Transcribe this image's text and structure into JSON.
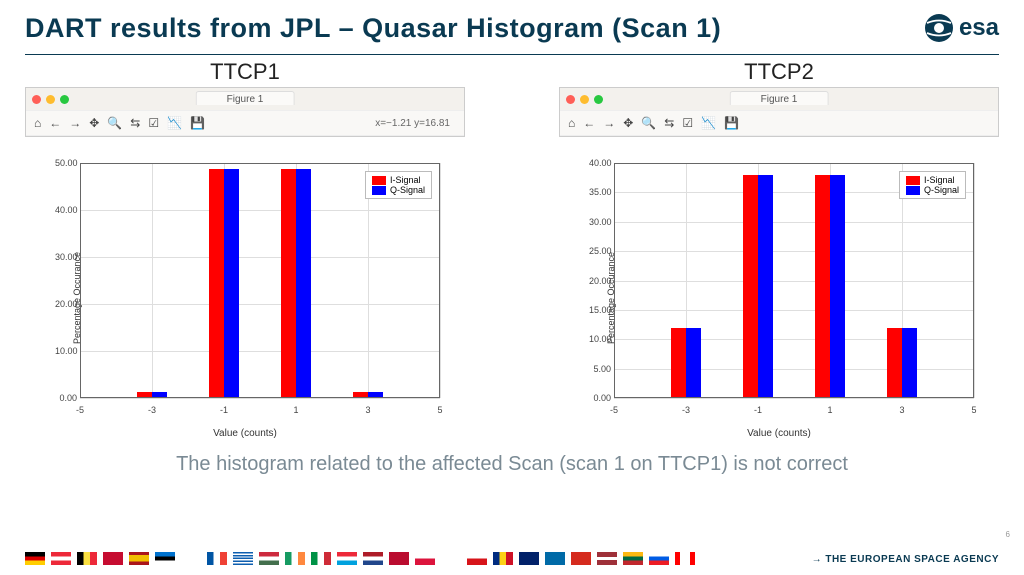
{
  "title": "DART results from JPL – Quasar Histogram (Scan 1)",
  "logo_text": "esa",
  "caption": "The histogram related to the affected Scan (scan 1 on TTCP1) is not correct",
  "page_number": "6",
  "footer_text": "→ THE EUROPEAN SPACE AGENCY",
  "toolbar": {
    "figure_label": "Figure 1",
    "icons": [
      "⌂",
      "←",
      "→",
      "✥",
      "🔍",
      "⇆",
      "☑",
      "📉",
      "💾"
    ],
    "coord": "x=−1.21 y=16.81"
  },
  "legend": {
    "items": [
      {
        "label": "I-Signal",
        "color": "#ff0000"
      },
      {
        "label": "Q-Signal",
        "color": "#0000ff"
      }
    ]
  },
  "axes_common": {
    "xlabel": "Value (counts)",
    "ylabel": "Percentage Occurance",
    "xlim": [
      -5,
      5
    ],
    "xticks": [
      -5,
      -3,
      -1,
      1,
      3,
      5
    ],
    "grid_color": "#dedede",
    "series_colors": {
      "I": "#ff0000",
      "Q": "#0000ff"
    },
    "bar_half_width_data": 0.42
  },
  "charts": [
    {
      "title": "TTCP1",
      "ylim": [
        0,
        50
      ],
      "yticks": [
        0,
        10,
        20,
        30,
        40,
        50
      ],
      "show_coord": true,
      "clusters": [
        {
          "x": -3,
          "I": 1.2,
          "Q": 1.2
        },
        {
          "x": -1,
          "I": 48.8,
          "Q": 48.8
        },
        {
          "x": 1,
          "I": 48.8,
          "Q": 48.8
        },
        {
          "x": 3,
          "I": 1.2,
          "Q": 1.2
        }
      ]
    },
    {
      "title": "TTCP2",
      "ylim": [
        0,
        40
      ],
      "yticks": [
        0,
        5,
        10,
        15,
        20,
        25,
        30,
        35,
        40
      ],
      "show_coord": false,
      "clusters": [
        {
          "x": -3,
          "I": 12.0,
          "Q": 12.0
        },
        {
          "x": -1,
          "I": 38.0,
          "Q": 38.0
        },
        {
          "x": 1,
          "I": 38.0,
          "Q": 38.0
        },
        {
          "x": 3,
          "I": 12.0,
          "Q": 12.0
        }
      ]
    }
  ],
  "win_dots": [
    "#ff5f57",
    "#febc2e",
    "#28c840"
  ],
  "flags": [
    "de",
    "at",
    "be",
    "dk",
    "es",
    "ee",
    "fi",
    "fr",
    "gr",
    "hu",
    "ie",
    "it",
    "lu",
    "nl",
    "no",
    "pl",
    "pt",
    "cz",
    "ro",
    "gb",
    "se",
    "ch",
    "lv",
    "lt",
    "si",
    "ca"
  ]
}
